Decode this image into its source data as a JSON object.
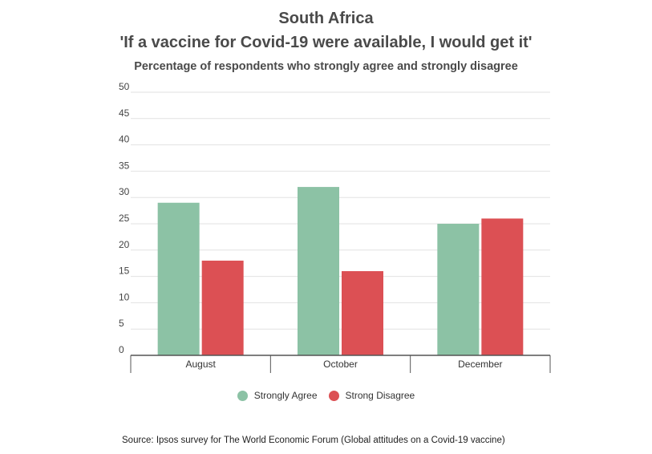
{
  "chart_data": {
    "type": "bar",
    "title": "South Africa",
    "subtitle": "'If a vaccine for Covid-19 were available, I would get it'",
    "description": "Percentage of respondents who strongly agree and strongly disagree",
    "categories": [
      "August",
      "October",
      "December"
    ],
    "series": [
      {
        "name": "Strongly Agree",
        "color": "#8cc2a5",
        "values": [
          29,
          32,
          25
        ]
      },
      {
        "name": "Strong Disagree",
        "color": "#dc5054",
        "values": [
          18,
          16,
          26
        ]
      }
    ],
    "ylim": [
      0,
      50
    ],
    "yticks": [
      "0",
      "5",
      "10",
      "15",
      "20",
      "25",
      "30",
      "35",
      "40",
      "45",
      "50"
    ],
    "grid": true,
    "legend": "bottom-center",
    "source": "Source: Ipsos survey for The World Economic Forum (Global attitudes on a Covid-19 vaccine)"
  }
}
